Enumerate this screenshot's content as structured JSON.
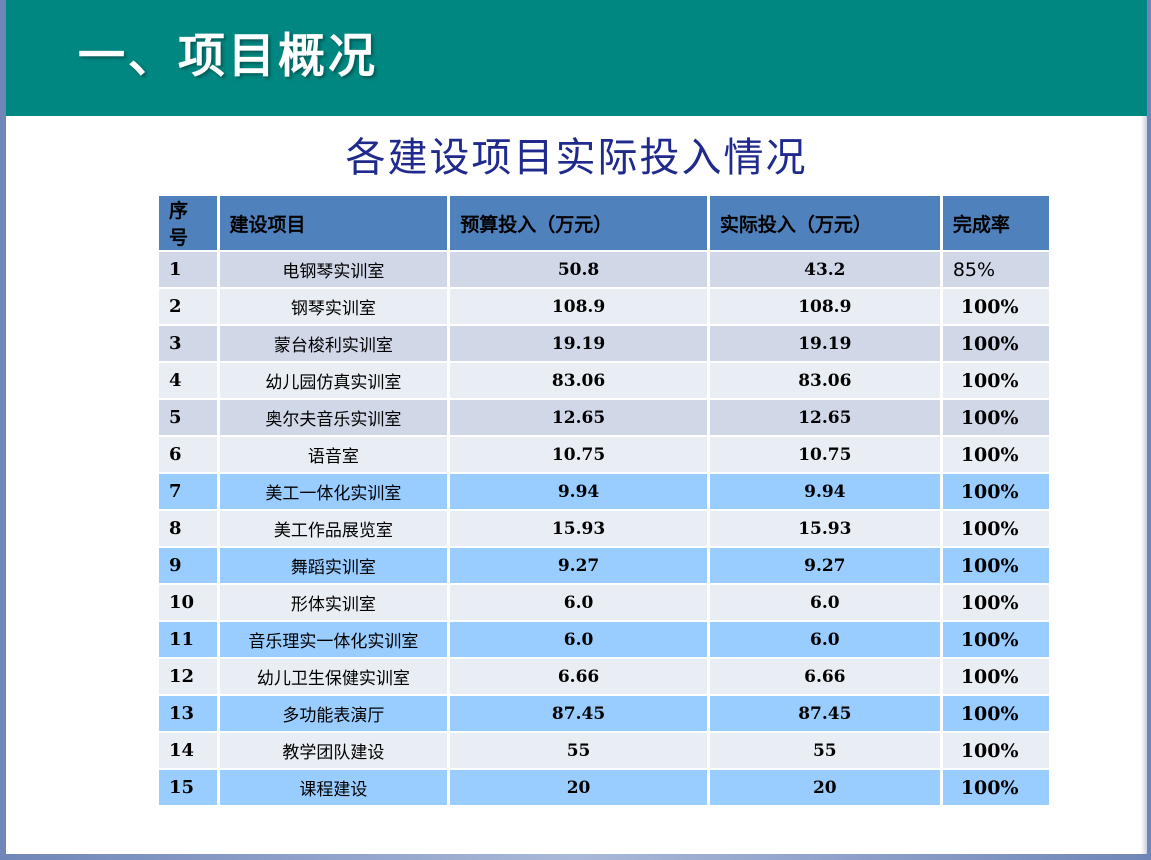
{
  "header": {
    "title": "一、项目概况"
  },
  "table_title": "各建设项目实际投入情况",
  "table": {
    "columns": [
      "序号",
      "建设项目",
      "预算投入（万元）",
      "实际投入（万元）",
      "完成率"
    ],
    "rows": [
      {
        "no": "1",
        "name": "电钢琴实训室",
        "budget": "50.8",
        "actual": "43.2",
        "rate": "85%",
        "tone": "dark"
      },
      {
        "no": "2",
        "name": "钢琴实训室",
        "budget": "108.9",
        "actual": "108.9",
        "rate": "100%",
        "tone": "light"
      },
      {
        "no": "3",
        "name": "蒙台梭利实训室",
        "budget": "19.19",
        "actual": "19.19",
        "rate": "100%",
        "tone": "dark"
      },
      {
        "no": "4",
        "name": "幼儿园仿真实训室",
        "budget": "83.06",
        "actual": "83.06",
        "rate": "100%",
        "tone": "light"
      },
      {
        "no": "5",
        "name": "奥尔夫音乐实训室",
        "budget": "12.65",
        "actual": "12.65",
        "rate": "100%",
        "tone": "dark"
      },
      {
        "no": "6",
        "name": "语音室",
        "budget": "10.75",
        "actual": "10.75",
        "rate": "100%",
        "tone": "light"
      },
      {
        "no": "7",
        "name": "美工一体化实训室",
        "budget": "9.94",
        "actual": "9.94",
        "rate": "100%",
        "tone": "blue"
      },
      {
        "no": "8",
        "name": "美工作品展览室",
        "budget": "15.93",
        "actual": "15.93",
        "rate": "100%",
        "tone": "light"
      },
      {
        "no": "9",
        "name": "舞蹈实训室",
        "budget": "9.27",
        "actual": "9.27",
        "rate": "100%",
        "tone": "blue"
      },
      {
        "no": "10",
        "name": "形体实训室",
        "budget": "6.0",
        "actual": "6.0",
        "rate": "100%",
        "tone": "light"
      },
      {
        "no": "11",
        "name": "音乐理实一体化实训室",
        "budget": "6.0",
        "actual": "6.0",
        "rate": "100%",
        "tone": "blue"
      },
      {
        "no": "12",
        "name": "幼儿卫生保健实训室",
        "budget": "6.66",
        "actual": "6.66",
        "rate": "100%",
        "tone": "light"
      },
      {
        "no": "13",
        "name": "多功能表演厅",
        "budget": "87.45",
        "actual": "87.45",
        "rate": "100%",
        "tone": "blue"
      },
      {
        "no": "14",
        "name": "教学团队建设",
        "budget": "55",
        "actual": "55",
        "rate": "100%",
        "tone": "light"
      },
      {
        "no": "15",
        "name": "课程建设",
        "budget": "20",
        "actual": "20",
        "rate": "100%",
        "tone": "blue"
      }
    ]
  },
  "colors": {
    "header_bg": "#008781",
    "title_text": "#1f2a8c",
    "table_header_bg": "#4f81bd",
    "row_dark": "#d0d8e8",
    "row_light": "#e9edf4",
    "row_blue": "#99ccff"
  }
}
